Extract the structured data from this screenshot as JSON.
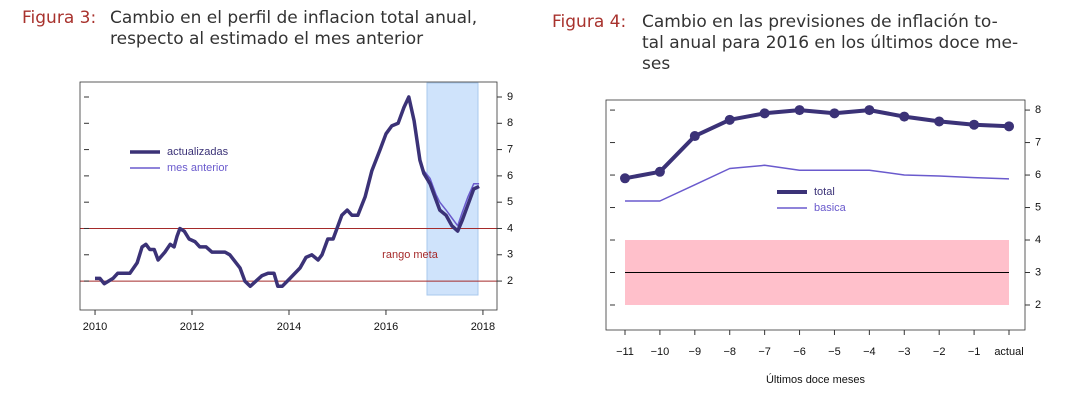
{
  "chart_data": [
    {
      "type": "line",
      "figure_label": "Figura 3:",
      "title": [
        "Cambio en el perfil de inflacion total anual,",
        "respecto al estimado el mes anterior"
      ],
      "x": [
        2010.0,
        2010.1,
        2010.19,
        2010.37,
        2010.47,
        2010.6,
        2010.72,
        2010.87,
        2010.97,
        2011.05,
        2011.13,
        2011.22,
        2011.3,
        2011.44,
        2011.55,
        2011.63,
        2011.69,
        2011.75,
        2011.84,
        2011.94,
        2012.06,
        2012.16,
        2012.29,
        2012.41,
        2012.54,
        2012.68,
        2012.78,
        2012.99,
        2013.09,
        2013.2,
        2013.32,
        2013.44,
        2013.57,
        2013.69,
        2013.77,
        2013.86,
        2014.02,
        2014.23,
        2014.35,
        2014.47,
        2014.6,
        2014.68,
        2014.8,
        2014.91,
        2014.97,
        2015.09,
        2015.2,
        2015.3,
        2015.42,
        2015.57,
        2015.71,
        2015.88,
        2016.0,
        2016.12,
        2016.25,
        2016.37,
        2016.47,
        2016.58,
        2016.7,
        2016.78,
        2016.91,
        2017.03,
        2017.11,
        2017.24,
        2017.36,
        2017.48,
        2017.57,
        2017.69,
        2017.81,
        2017.92
      ],
      "series": [
        {
          "name": "actualizadas",
          "color": "#3b3277",
          "width": 3.5,
          "values": [
            2.1,
            2.1,
            1.9,
            2.1,
            2.3,
            2.3,
            2.3,
            2.7,
            3.3,
            3.4,
            3.2,
            3.2,
            2.8,
            3.1,
            3.4,
            3.3,
            3.7,
            4.0,
            3.9,
            3.6,
            3.5,
            3.3,
            3.3,
            3.1,
            3.1,
            3.1,
            3.0,
            2.5,
            2.0,
            1.8,
            2.0,
            2.2,
            2.3,
            2.3,
            1.8,
            1.8,
            2.1,
            2.5,
            2.9,
            3.0,
            2.8,
            3.0,
            3.6,
            3.6,
            3.9,
            4.5,
            4.7,
            4.5,
            4.5,
            5.2,
            6.2,
            7.0,
            7.6,
            7.9,
            8.0,
            8.6,
            9.0,
            8.1,
            6.6,
            6.1,
            5.7,
            5.1,
            4.7,
            4.5,
            4.1,
            3.9,
            4.3,
            4.9,
            5.5,
            5.6
          ]
        },
        {
          "name": "mes anterior",
          "color": "#6a5acd",
          "width": 1.5,
          "values": [
            null,
            null,
            null,
            null,
            null,
            null,
            null,
            null,
            null,
            null,
            null,
            null,
            null,
            null,
            null,
            null,
            null,
            null,
            null,
            null,
            null,
            null,
            null,
            null,
            null,
            null,
            null,
            null,
            null,
            null,
            null,
            null,
            null,
            null,
            null,
            null,
            null,
            null,
            null,
            null,
            null,
            null,
            null,
            null,
            null,
            null,
            null,
            null,
            null,
            null,
            null,
            null,
            null,
            null,
            null,
            null,
            null,
            null,
            6.6,
            6.2,
            5.9,
            5.3,
            5.0,
            4.7,
            4.4,
            4.1,
            4.6,
            5.2,
            5.7,
            5.7
          ]
        }
      ],
      "xlim": [
        2009.69,
        2018.29
      ],
      "xticks": [
        2010,
        2012,
        2014,
        2016,
        2018
      ],
      "ylim": [
        0.9,
        9.57
      ],
      "yticks": [
        2,
        3,
        4,
        5,
        6,
        7,
        8,
        9
      ],
      "hlines": [
        2,
        4
      ],
      "hline_color": "#a52a2a",
      "annotation": "rango meta"
    },
    {
      "type": "line",
      "figure_label": "Figura 4:",
      "title": [
        "Cambio en las previsiones de inflación to-",
        "tal anual para 2016 en los últimos doce me-",
        "ses"
      ],
      "categories": [
        "−11",
        "−10",
        "−9",
        "−8",
        "−7",
        "−6",
        "−5",
        "−4",
        "−3",
        "−2",
        "−1",
        "actual"
      ],
      "x_label": "Últimos doce meses",
      "series": [
        {
          "name": "total",
          "color": "#3b3277",
          "width": 4,
          "markers": true,
          "values": [
            5.9,
            6.1,
            7.2,
            7.7,
            7.9,
            8.0,
            7.9,
            8.0,
            7.8,
            7.65,
            7.55,
            7.5
          ]
        },
        {
          "name": "basica",
          "color": "#6a5acd",
          "width": 1.5,
          "values": [
            5.2,
            5.2,
            5.7,
            6.2,
            6.3,
            6.15,
            6.15,
            6.15,
            6.0,
            5.97,
            5.92,
            5.88
          ]
        }
      ],
      "ylim": [
        1.23,
        8.31
      ],
      "yticks": [
        2,
        3,
        4,
        5,
        6,
        7,
        8
      ],
      "band": [
        2,
        4
      ],
      "band_color": "#ffc0cb",
      "hlines": [
        3
      ],
      "hline_color": "#000000"
    }
  ]
}
